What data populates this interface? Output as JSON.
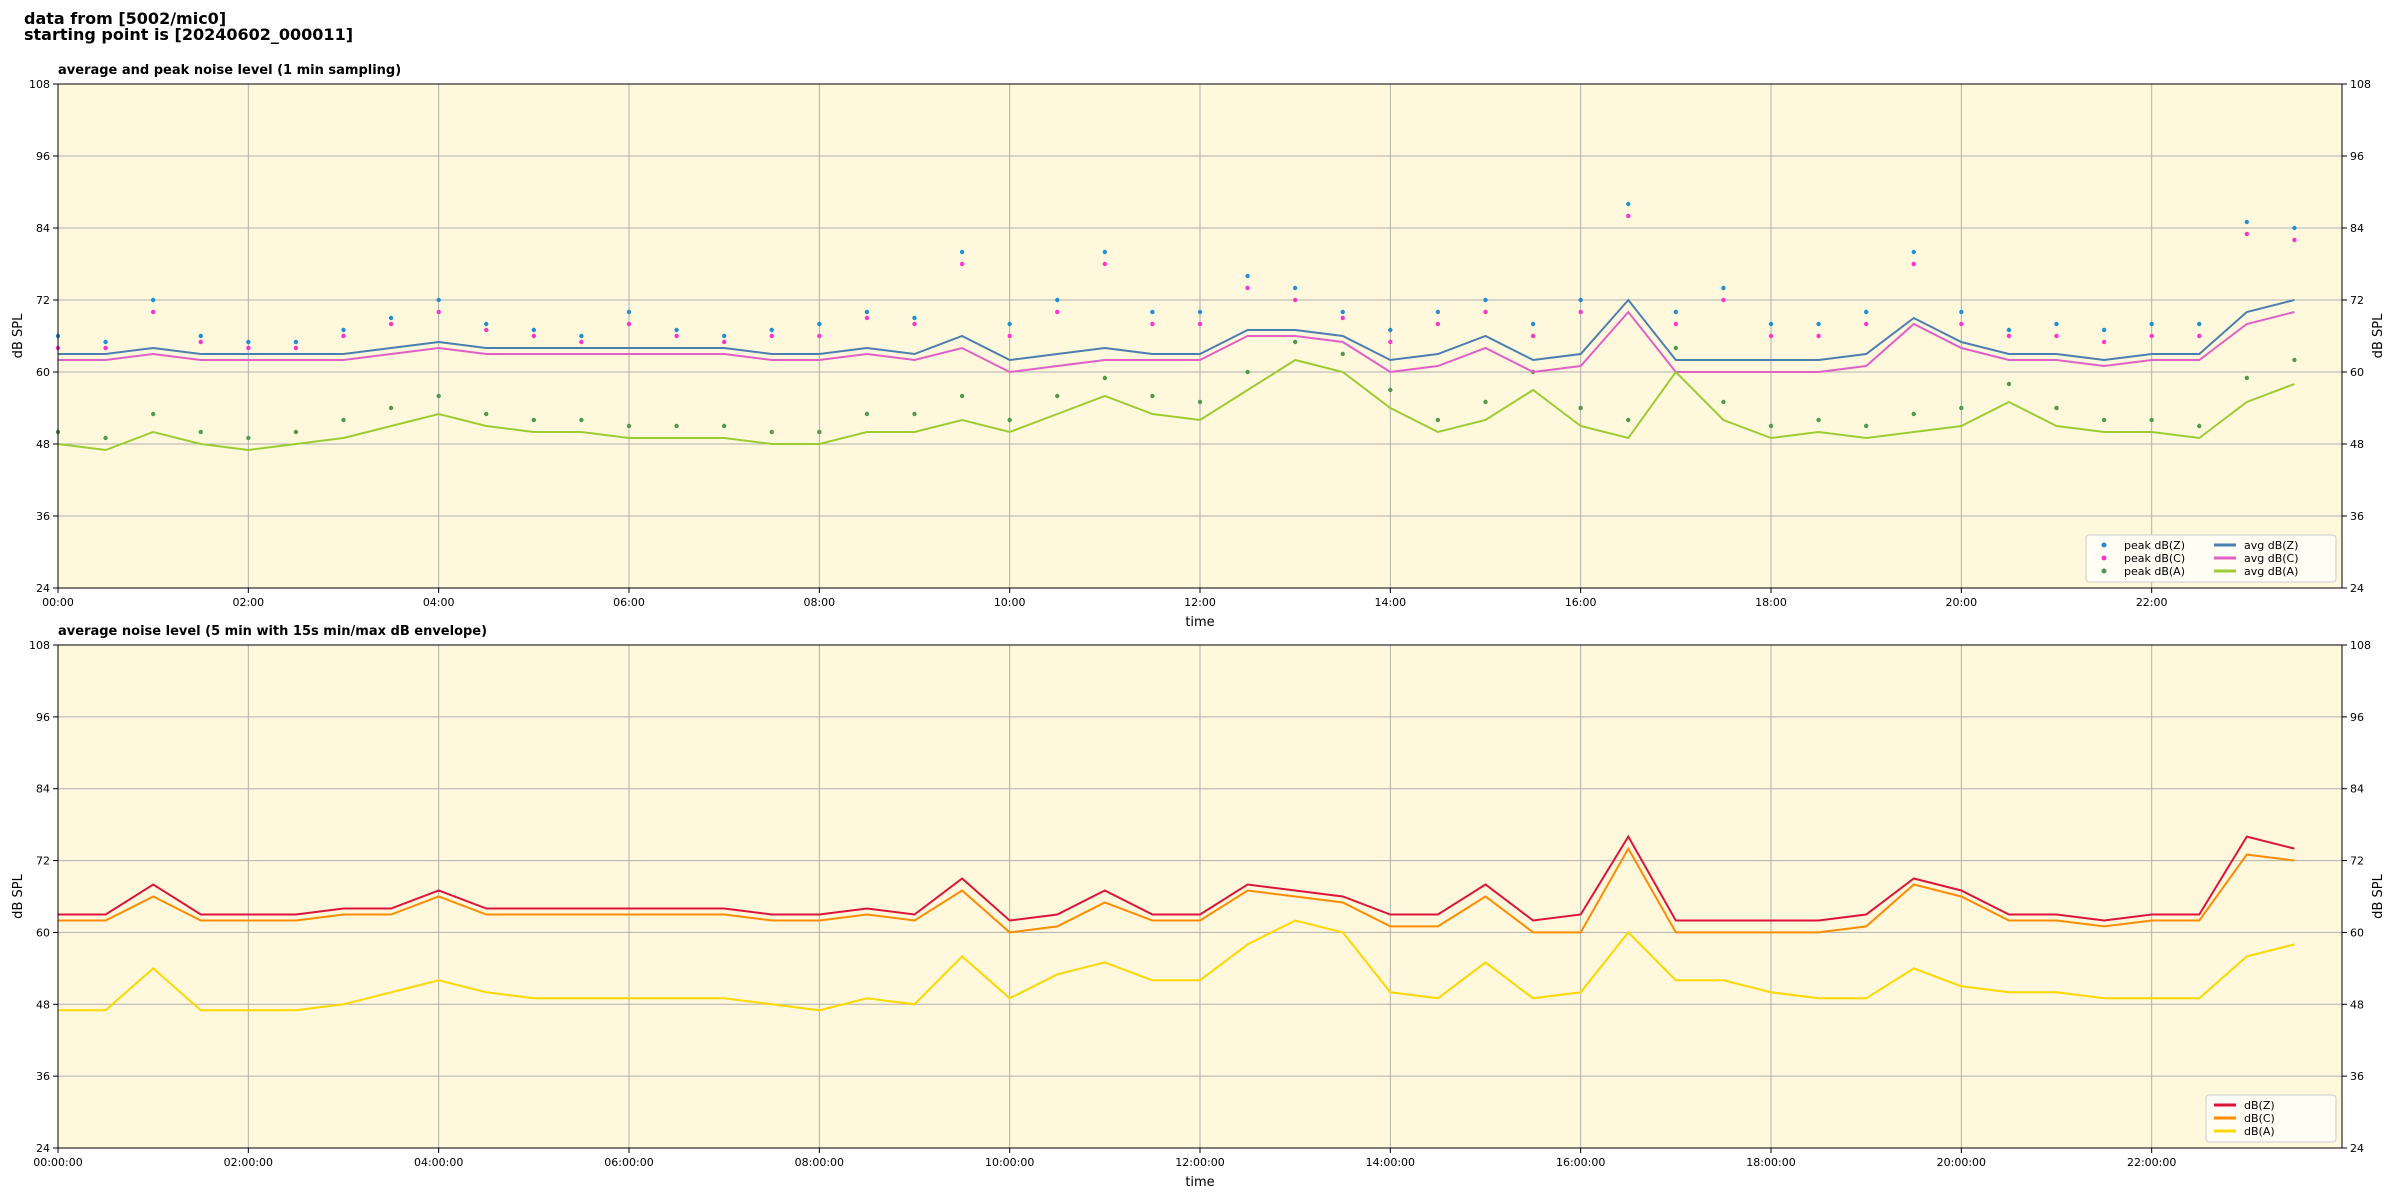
{
  "header": [
    "data from [5002/mic0]",
    "starting point is [20240602_000011]"
  ],
  "chart_data": [
    {
      "type": "line",
      "title": "average and peak noise level (1 min sampling)",
      "xlabel": "time",
      "ylabel": "dB SPL",
      "xlim": [
        0,
        24
      ],
      "ylim": [
        24,
        108
      ],
      "xticks": [
        {
          "value": 0,
          "label": "00:00"
        },
        {
          "value": 2,
          "label": "02:00"
        },
        {
          "value": 4,
          "label": "04:00"
        },
        {
          "value": 6,
          "label": "06:00"
        },
        {
          "value": 8,
          "label": "08:00"
        },
        {
          "value": 10,
          "label": "10:00"
        },
        {
          "value": 12,
          "label": "12:00"
        },
        {
          "value": 14,
          "label": "14:00"
        },
        {
          "value": 16,
          "label": "16:00"
        },
        {
          "value": 18,
          "label": "18:00"
        },
        {
          "value": 20,
          "label": "20:00"
        },
        {
          "value": 22,
          "label": "22:00"
        }
      ],
      "yticks": [
        24,
        36,
        48,
        60,
        72,
        84,
        96,
        108
      ],
      "grid": true,
      "legend": "lower right",
      "legend_columns": 2,
      "x": [
        0,
        0.5,
        1,
        1.5,
        2,
        2.5,
        3,
        3.5,
        4,
        4.5,
        5,
        5.5,
        6,
        6.5,
        7,
        7.5,
        8,
        8.5,
        9,
        9.5,
        10,
        10.5,
        11,
        11.5,
        12,
        12.5,
        13,
        13.5,
        14,
        14.5,
        15,
        15.5,
        16,
        16.5,
        17,
        17.5,
        18,
        18.5,
        19,
        19.5,
        20,
        20.5,
        21,
        21.5,
        22,
        22.5,
        23,
        23.5
      ],
      "series": [
        {
          "name": "peak dB(Z)",
          "kind": "scatter",
          "color": "#1f8fd6",
          "values": [
            66,
            65,
            72,
            66,
            65,
            65,
            67,
            69,
            72,
            68,
            67,
            66,
            70,
            67,
            66,
            67,
            68,
            70,
            69,
            80,
            68,
            72,
            80,
            70,
            70,
            76,
            74,
            70,
            67,
            70,
            72,
            68,
            72,
            88,
            70,
            74,
            68,
            68,
            70,
            80,
            70,
            67,
            68,
            67,
            68,
            68,
            85,
            84
          ]
        },
        {
          "name": "peak dB(C)",
          "kind": "scatter",
          "color": "#ff33cc",
          "values": [
            64,
            64,
            70,
            65,
            64,
            64,
            66,
            68,
            70,
            67,
            66,
            65,
            68,
            66,
            65,
            66,
            66,
            69,
            68,
            78,
            66,
            70,
            78,
            68,
            68,
            74,
            72,
            69,
            65,
            68,
            70,
            66,
            70,
            86,
            68,
            72,
            66,
            66,
            68,
            78,
            68,
            66,
            66,
            65,
            66,
            66,
            83,
            82
          ]
        },
        {
          "name": "peak dB(A)",
          "kind": "scatter",
          "color": "#4f9a4f",
          "values": [
            50,
            49,
            53,
            50,
            49,
            50,
            52,
            54,
            56,
            53,
            52,
            52,
            51,
            51,
            51,
            50,
            50,
            53,
            53,
            56,
            52,
            56,
            59,
            56,
            55,
            60,
            65,
            63,
            57,
            52,
            55,
            60,
            54,
            52,
            64,
            55,
            51,
            52,
            51,
            53,
            54,
            58,
            54,
            52,
            52,
            51,
            59,
            62
          ]
        },
        {
          "name": "avg dB(Z)",
          "kind": "line",
          "color": "#4a7fb0",
          "values": [
            63,
            63,
            64,
            63,
            63,
            63,
            63,
            64,
            65,
            64,
            64,
            64,
            64,
            64,
            64,
            63,
            63,
            64,
            63,
            66,
            62,
            63,
            64,
            63,
            63,
            67,
            67,
            66,
            62,
            63,
            66,
            62,
            63,
            72,
            62,
            62,
            62,
            62,
            63,
            69,
            65,
            63,
            63,
            62,
            63,
            63,
            70,
            72
          ]
        },
        {
          "name": "avg dB(C)",
          "kind": "line",
          "color": "#e060c8",
          "values": [
            62,
            62,
            63,
            62,
            62,
            62,
            62,
            63,
            64,
            63,
            63,
            63,
            63,
            63,
            63,
            62,
            62,
            63,
            62,
            64,
            60,
            61,
            62,
            62,
            62,
            66,
            66,
            65,
            60,
            61,
            64,
            60,
            61,
            70,
            60,
            60,
            60,
            60,
            61,
            68,
            64,
            62,
            62,
            61,
            62,
            62,
            68,
            70
          ]
        },
        {
          "name": "avg dB(A)",
          "kind": "line",
          "color": "#9acd32",
          "values": [
            48,
            47,
            50,
            48,
            47,
            48,
            49,
            51,
            53,
            51,
            50,
            50,
            49,
            49,
            49,
            48,
            48,
            50,
            50,
            52,
            50,
            53,
            56,
            53,
            52,
            57,
            62,
            60,
            54,
            50,
            52,
            57,
            51,
            49,
            60,
            52,
            49,
            50,
            49,
            50,
            51,
            55,
            51,
            50,
            50,
            49,
            55,
            58
          ]
        }
      ]
    },
    {
      "type": "line",
      "title": "average noise level (5 min with 15s min/max dB envelope)",
      "xlabel": "time",
      "ylabel": "dB SPL",
      "xlim": [
        0,
        24
      ],
      "ylim": [
        24,
        108
      ],
      "xticks": [
        {
          "value": 0,
          "label": "00:00:00"
        },
        {
          "value": 2,
          "label": "02:00:00"
        },
        {
          "value": 4,
          "label": "04:00:00"
        },
        {
          "value": 6,
          "label": "06:00:00"
        },
        {
          "value": 8,
          "label": "08:00:00"
        },
        {
          "value": 10,
          "label": "10:00:00"
        },
        {
          "value": 12,
          "label": "12:00:00"
        },
        {
          "value": 14,
          "label": "14:00:00"
        },
        {
          "value": 16,
          "label": "16:00:00"
        },
        {
          "value": 18,
          "label": "18:00:00"
        },
        {
          "value": 20,
          "label": "20:00:00"
        },
        {
          "value": 22,
          "label": "22:00:00"
        }
      ],
      "yticks": [
        24,
        36,
        48,
        60,
        72,
        84,
        96,
        108
      ],
      "grid": true,
      "legend": "lower right",
      "legend_columns": 1,
      "x": [
        0,
        0.5,
        1,
        1.5,
        2,
        2.5,
        3,
        3.5,
        4,
        4.5,
        5,
        5.5,
        6,
        6.5,
        7,
        7.5,
        8,
        8.5,
        9,
        9.5,
        10,
        10.5,
        11,
        11.5,
        12,
        12.5,
        13,
        13.5,
        14,
        14.5,
        15,
        15.5,
        16,
        16.5,
        17,
        17.5,
        18,
        18.5,
        19,
        19.5,
        20,
        20.5,
        21,
        21.5,
        22,
        22.5,
        23,
        23.5
      ],
      "series": [
        {
          "name": "dB(Z)",
          "kind": "line",
          "color": "#dc143c",
          "values": [
            63,
            63,
            68,
            63,
            63,
            63,
            64,
            64,
            67,
            64,
            64,
            64,
            64,
            64,
            64,
            63,
            63,
            64,
            63,
            69,
            62,
            63,
            67,
            63,
            63,
            68,
            67,
            66,
            63,
            63,
            68,
            62,
            63,
            76,
            62,
            62,
            62,
            62,
            63,
            69,
            67,
            63,
            63,
            62,
            63,
            63,
            76,
            74
          ]
        },
        {
          "name": "dB(C)",
          "kind": "line",
          "color": "#ff8c00",
          "values": [
            62,
            62,
            66,
            62,
            62,
            62,
            63,
            63,
            66,
            63,
            63,
            63,
            63,
            63,
            63,
            62,
            62,
            63,
            62,
            67,
            60,
            61,
            65,
            62,
            62,
            67,
            66,
            65,
            61,
            61,
            66,
            60,
            60,
            74,
            60,
            60,
            60,
            60,
            61,
            68,
            66,
            62,
            62,
            61,
            62,
            62,
            73,
            72
          ]
        },
        {
          "name": "dB(A)",
          "kind": "line",
          "color": "#ffd700",
          "values": [
            47,
            47,
            54,
            47,
            47,
            47,
            48,
            50,
            52,
            50,
            49,
            49,
            49,
            49,
            49,
            48,
            47,
            49,
            48,
            56,
            49,
            53,
            55,
            52,
            52,
            58,
            62,
            60,
            50,
            49,
            55,
            49,
            50,
            60,
            52,
            52,
            50,
            49,
            49,
            54,
            51,
            50,
            50,
            49,
            49,
            49,
            56,
            58
          ]
        }
      ]
    }
  ]
}
